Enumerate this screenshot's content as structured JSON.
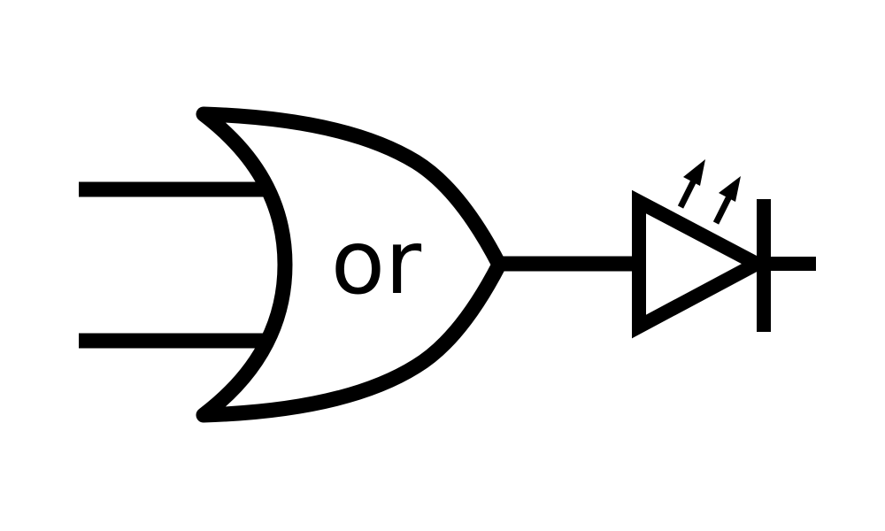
{
  "diagram": {
    "gate_label": "or",
    "stroke_color": "#000000",
    "background_color": "#ffffff",
    "components": {
      "gate": "or-gate",
      "output_indicator": "led-diode"
    }
  }
}
